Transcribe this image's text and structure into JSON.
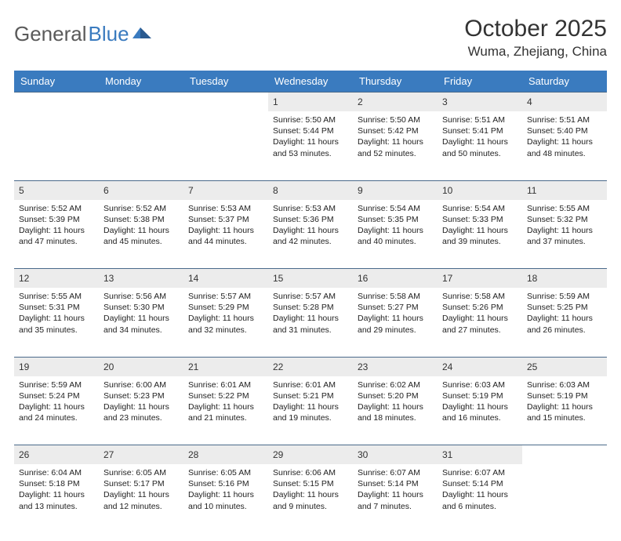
{
  "logo": {
    "text1": "General",
    "text2": "Blue"
  },
  "title": "October 2025",
  "location": "Wuma, Zhejiang, China",
  "colors": {
    "header_bg": "#3a7bbf",
    "header_text": "#ffffff",
    "daynum_bg": "#ececec",
    "border": "#4a6a8a",
    "body_text": "#222222",
    "title_text": "#333333"
  },
  "day_headers": [
    "Sunday",
    "Monday",
    "Tuesday",
    "Wednesday",
    "Thursday",
    "Friday",
    "Saturday"
  ],
  "weeks": [
    [
      null,
      null,
      null,
      {
        "n": "1",
        "sr": "5:50 AM",
        "ss": "5:44 PM",
        "dl": "11 hours and 53 minutes."
      },
      {
        "n": "2",
        "sr": "5:50 AM",
        "ss": "5:42 PM",
        "dl": "11 hours and 52 minutes."
      },
      {
        "n": "3",
        "sr": "5:51 AM",
        "ss": "5:41 PM",
        "dl": "11 hours and 50 minutes."
      },
      {
        "n": "4",
        "sr": "5:51 AM",
        "ss": "5:40 PM",
        "dl": "11 hours and 48 minutes."
      }
    ],
    [
      {
        "n": "5",
        "sr": "5:52 AM",
        "ss": "5:39 PM",
        "dl": "11 hours and 47 minutes."
      },
      {
        "n": "6",
        "sr": "5:52 AM",
        "ss": "5:38 PM",
        "dl": "11 hours and 45 minutes."
      },
      {
        "n": "7",
        "sr": "5:53 AM",
        "ss": "5:37 PM",
        "dl": "11 hours and 44 minutes."
      },
      {
        "n": "8",
        "sr": "5:53 AM",
        "ss": "5:36 PM",
        "dl": "11 hours and 42 minutes."
      },
      {
        "n": "9",
        "sr": "5:54 AM",
        "ss": "5:35 PM",
        "dl": "11 hours and 40 minutes."
      },
      {
        "n": "10",
        "sr": "5:54 AM",
        "ss": "5:33 PM",
        "dl": "11 hours and 39 minutes."
      },
      {
        "n": "11",
        "sr": "5:55 AM",
        "ss": "5:32 PM",
        "dl": "11 hours and 37 minutes."
      }
    ],
    [
      {
        "n": "12",
        "sr": "5:55 AM",
        "ss": "5:31 PM",
        "dl": "11 hours and 35 minutes."
      },
      {
        "n": "13",
        "sr": "5:56 AM",
        "ss": "5:30 PM",
        "dl": "11 hours and 34 minutes."
      },
      {
        "n": "14",
        "sr": "5:57 AM",
        "ss": "5:29 PM",
        "dl": "11 hours and 32 minutes."
      },
      {
        "n": "15",
        "sr": "5:57 AM",
        "ss": "5:28 PM",
        "dl": "11 hours and 31 minutes."
      },
      {
        "n": "16",
        "sr": "5:58 AM",
        "ss": "5:27 PM",
        "dl": "11 hours and 29 minutes."
      },
      {
        "n": "17",
        "sr": "5:58 AM",
        "ss": "5:26 PM",
        "dl": "11 hours and 27 minutes."
      },
      {
        "n": "18",
        "sr": "5:59 AM",
        "ss": "5:25 PM",
        "dl": "11 hours and 26 minutes."
      }
    ],
    [
      {
        "n": "19",
        "sr": "5:59 AM",
        "ss": "5:24 PM",
        "dl": "11 hours and 24 minutes."
      },
      {
        "n": "20",
        "sr": "6:00 AM",
        "ss": "5:23 PM",
        "dl": "11 hours and 23 minutes."
      },
      {
        "n": "21",
        "sr": "6:01 AM",
        "ss": "5:22 PM",
        "dl": "11 hours and 21 minutes."
      },
      {
        "n": "22",
        "sr": "6:01 AM",
        "ss": "5:21 PM",
        "dl": "11 hours and 19 minutes."
      },
      {
        "n": "23",
        "sr": "6:02 AM",
        "ss": "5:20 PM",
        "dl": "11 hours and 18 minutes."
      },
      {
        "n": "24",
        "sr": "6:03 AM",
        "ss": "5:19 PM",
        "dl": "11 hours and 16 minutes."
      },
      {
        "n": "25",
        "sr": "6:03 AM",
        "ss": "5:19 PM",
        "dl": "11 hours and 15 minutes."
      }
    ],
    [
      {
        "n": "26",
        "sr": "6:04 AM",
        "ss": "5:18 PM",
        "dl": "11 hours and 13 minutes."
      },
      {
        "n": "27",
        "sr": "6:05 AM",
        "ss": "5:17 PM",
        "dl": "11 hours and 12 minutes."
      },
      {
        "n": "28",
        "sr": "6:05 AM",
        "ss": "5:16 PM",
        "dl": "11 hours and 10 minutes."
      },
      {
        "n": "29",
        "sr": "6:06 AM",
        "ss": "5:15 PM",
        "dl": "11 hours and 9 minutes."
      },
      {
        "n": "30",
        "sr": "6:07 AM",
        "ss": "5:14 PM",
        "dl": "11 hours and 7 minutes."
      },
      {
        "n": "31",
        "sr": "6:07 AM",
        "ss": "5:14 PM",
        "dl": "11 hours and 6 minutes."
      },
      null
    ]
  ],
  "labels": {
    "sunrise": "Sunrise: ",
    "sunset": "Sunset: ",
    "daylight": "Daylight: "
  }
}
